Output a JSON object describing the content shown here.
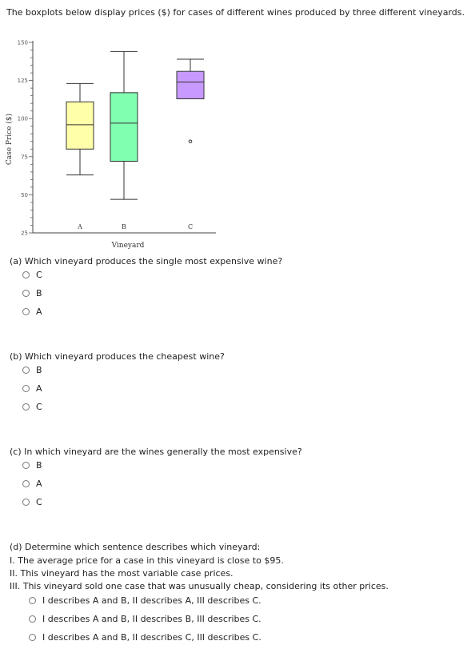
{
  "intro": "The boxplots below display prices ($) for cases of different wines produced by three different vineyards.",
  "chart_data": {
    "type": "boxplot",
    "ylabel": "Case Price ($)",
    "xlabel": "Vineyard",
    "ylim": [
      25,
      150
    ],
    "yticks": [
      150,
      125,
      100,
      75,
      50,
      25
    ],
    "yticks_labels": [
      "150",
      "125",
      "100",
      "75",
      "50",
      "25"
    ],
    "categories": [
      "A",
      "B",
      "C"
    ],
    "boxes": [
      {
        "label": "A",
        "min": 63,
        "q1": 80,
        "median": 96,
        "q3": 111,
        "max": 123,
        "color": "#ffffaa",
        "outliers": []
      },
      {
        "label": "B",
        "min": 47,
        "q1": 72,
        "median": 97,
        "q3": 117,
        "max": 144,
        "color": "#80ffb0",
        "outliers": []
      },
      {
        "label": "C",
        "min": 113,
        "q1": 113,
        "median": 124,
        "q3": 131,
        "max": 139,
        "color": "#c89aff",
        "outliers": [
          85
        ]
      }
    ]
  },
  "questions": {
    "a": {
      "text": "(a) Which vineyard produces the single most expensive wine?",
      "options": [
        "C",
        "B",
        "A"
      ]
    },
    "b": {
      "text": "(b) Which vineyard produces the cheapest wine?",
      "options": [
        "B",
        "A",
        "C"
      ]
    },
    "c": {
      "text": "(c) In which vineyard are the wines generally the most expensive?",
      "options": [
        "B",
        "A",
        "C"
      ]
    },
    "d": {
      "text": "(d) Determine which sentence describes which vineyard:",
      "statements": [
        "I. The average price for a case in this vineyard is close to $95.",
        "II. This vineyard has the most variable case prices.",
        "III. This vineyard sold one case that was unusually cheap, considering its other prices."
      ],
      "options": [
        "I describes A and B, II describes A, III describes C.",
        "I describes A and B, II describes B, III describes C.",
        "I describes A and B, II describes C, III describes C."
      ]
    }
  }
}
